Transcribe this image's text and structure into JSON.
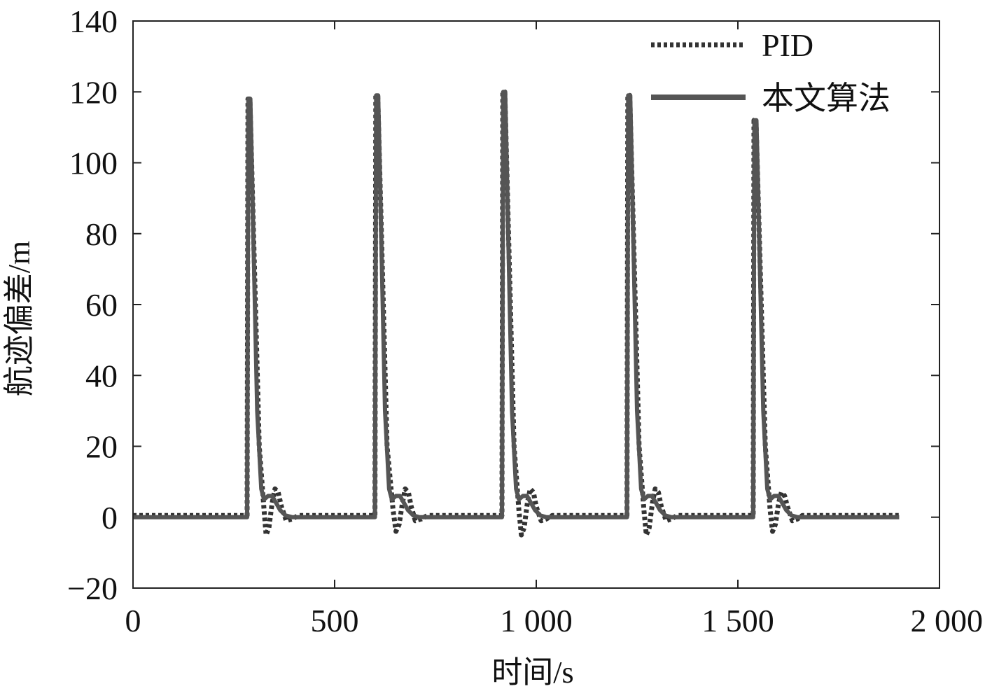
{
  "chart_data": {
    "type": "line",
    "title": "",
    "xlabel": "时间/s",
    "ylabel": "航迹偏差/m",
    "xlim": [
      0,
      2000
    ],
    "ylim": [
      -20,
      140
    ],
    "xticks": [
      0,
      500,
      1000,
      1500,
      2000
    ],
    "xtick_labels": [
      "0",
      "500",
      "1 000",
      "1 500",
      "2 000"
    ],
    "yticks": [
      -20,
      0,
      20,
      40,
      60,
      80,
      100,
      120,
      140
    ],
    "ytick_labels": [
      "−20",
      "0",
      "20",
      "40",
      "60",
      "80",
      "100",
      "120",
      "140"
    ],
    "grid": false,
    "legend_position": "top-right",
    "series": [
      {
        "name": "PID",
        "style": "dotted",
        "color": "#333333",
        "points": [
          [
            0,
            0.5
          ],
          [
            283,
            0.5
          ],
          [
            285,
            118
          ],
          [
            290,
            118
          ],
          [
            313,
            20
          ],
          [
            325,
            2
          ],
          [
            330,
            -5
          ],
          [
            337,
            -3
          ],
          [
            345,
            4
          ],
          [
            352,
            8
          ],
          [
            360,
            7
          ],
          [
            368,
            3
          ],
          [
            380,
            -1
          ],
          [
            395,
            -0.5
          ],
          [
            410,
            0.5
          ],
          [
            600,
            0.5
          ],
          [
            602,
            119
          ],
          [
            607,
            119
          ],
          [
            630,
            20
          ],
          [
            645,
            2
          ],
          [
            652,
            -4
          ],
          [
            660,
            -2
          ],
          [
            668,
            4
          ],
          [
            675,
            8
          ],
          [
            683,
            7
          ],
          [
            690,
            3
          ],
          [
            700,
            -1
          ],
          [
            715,
            -0.5
          ],
          [
            730,
            0.5
          ],
          [
            915,
            0.5
          ],
          [
            917,
            120
          ],
          [
            922,
            120
          ],
          [
            945,
            20
          ],
          [
            957,
            2
          ],
          [
            963,
            -5
          ],
          [
            970,
            -3
          ],
          [
            978,
            4
          ],
          [
            985,
            8
          ],
          [
            993,
            7
          ],
          [
            1000,
            3
          ],
          [
            1012,
            -1
          ],
          [
            1025,
            -0.5
          ],
          [
            1040,
            0.5
          ],
          [
            1225,
            0.5
          ],
          [
            1227,
            119
          ],
          [
            1232,
            119
          ],
          [
            1255,
            20
          ],
          [
            1267,
            2
          ],
          [
            1273,
            -5
          ],
          [
            1280,
            -3
          ],
          [
            1288,
            4
          ],
          [
            1295,
            8
          ],
          [
            1303,
            7
          ],
          [
            1310,
            3
          ],
          [
            1322,
            -1
          ],
          [
            1335,
            -0.5
          ],
          [
            1350,
            0.5
          ],
          [
            1538,
            0.5
          ],
          [
            1540,
            112
          ],
          [
            1545,
            112
          ],
          [
            1568,
            20
          ],
          [
            1580,
            2
          ],
          [
            1586,
            -4
          ],
          [
            1593,
            -2
          ],
          [
            1601,
            4
          ],
          [
            1608,
            7
          ],
          [
            1616,
            6
          ],
          [
            1623,
            3
          ],
          [
            1635,
            -1
          ],
          [
            1648,
            -0.5
          ],
          [
            1660,
            0.5
          ],
          [
            1900,
            0.5
          ]
        ]
      },
      {
        "name": "本文算法",
        "style": "solid",
        "color": "#555555",
        "points": [
          [
            0,
            0
          ],
          [
            283,
            0
          ],
          [
            286,
            118
          ],
          [
            291,
            118
          ],
          [
            308,
            30
          ],
          [
            318,
            8
          ],
          [
            325,
            5
          ],
          [
            335,
            6
          ],
          [
            345,
            6
          ],
          [
            355,
            4
          ],
          [
            365,
            2
          ],
          [
            378,
            0.5
          ],
          [
            395,
            0
          ],
          [
            600,
            0
          ],
          [
            603,
            119
          ],
          [
            608,
            119
          ],
          [
            625,
            30
          ],
          [
            635,
            8
          ],
          [
            642,
            5
          ],
          [
            652,
            6
          ],
          [
            662,
            6
          ],
          [
            672,
            4
          ],
          [
            682,
            2
          ],
          [
            695,
            0.5
          ],
          [
            710,
            0
          ],
          [
            915,
            0
          ],
          [
            918,
            120
          ],
          [
            923,
            120
          ],
          [
            940,
            30
          ],
          [
            950,
            8
          ],
          [
            957,
            5
          ],
          [
            967,
            6
          ],
          [
            977,
            6
          ],
          [
            987,
            4
          ],
          [
            997,
            2
          ],
          [
            1010,
            0.5
          ],
          [
            1025,
            0
          ],
          [
            1225,
            0
          ],
          [
            1228,
            119
          ],
          [
            1233,
            119
          ],
          [
            1250,
            30
          ],
          [
            1260,
            8
          ],
          [
            1267,
            5
          ],
          [
            1277,
            6
          ],
          [
            1287,
            6
          ],
          [
            1297,
            4
          ],
          [
            1307,
            2
          ],
          [
            1320,
            0.5
          ],
          [
            1335,
            0
          ],
          [
            1538,
            0
          ],
          [
            1541,
            112
          ],
          [
            1546,
            112
          ],
          [
            1563,
            30
          ],
          [
            1573,
            8
          ],
          [
            1580,
            5
          ],
          [
            1590,
            6
          ],
          [
            1600,
            6
          ],
          [
            1610,
            4
          ],
          [
            1620,
            2
          ],
          [
            1633,
            0.5
          ],
          [
            1648,
            0
          ],
          [
            1900,
            0
          ]
        ]
      }
    ]
  }
}
